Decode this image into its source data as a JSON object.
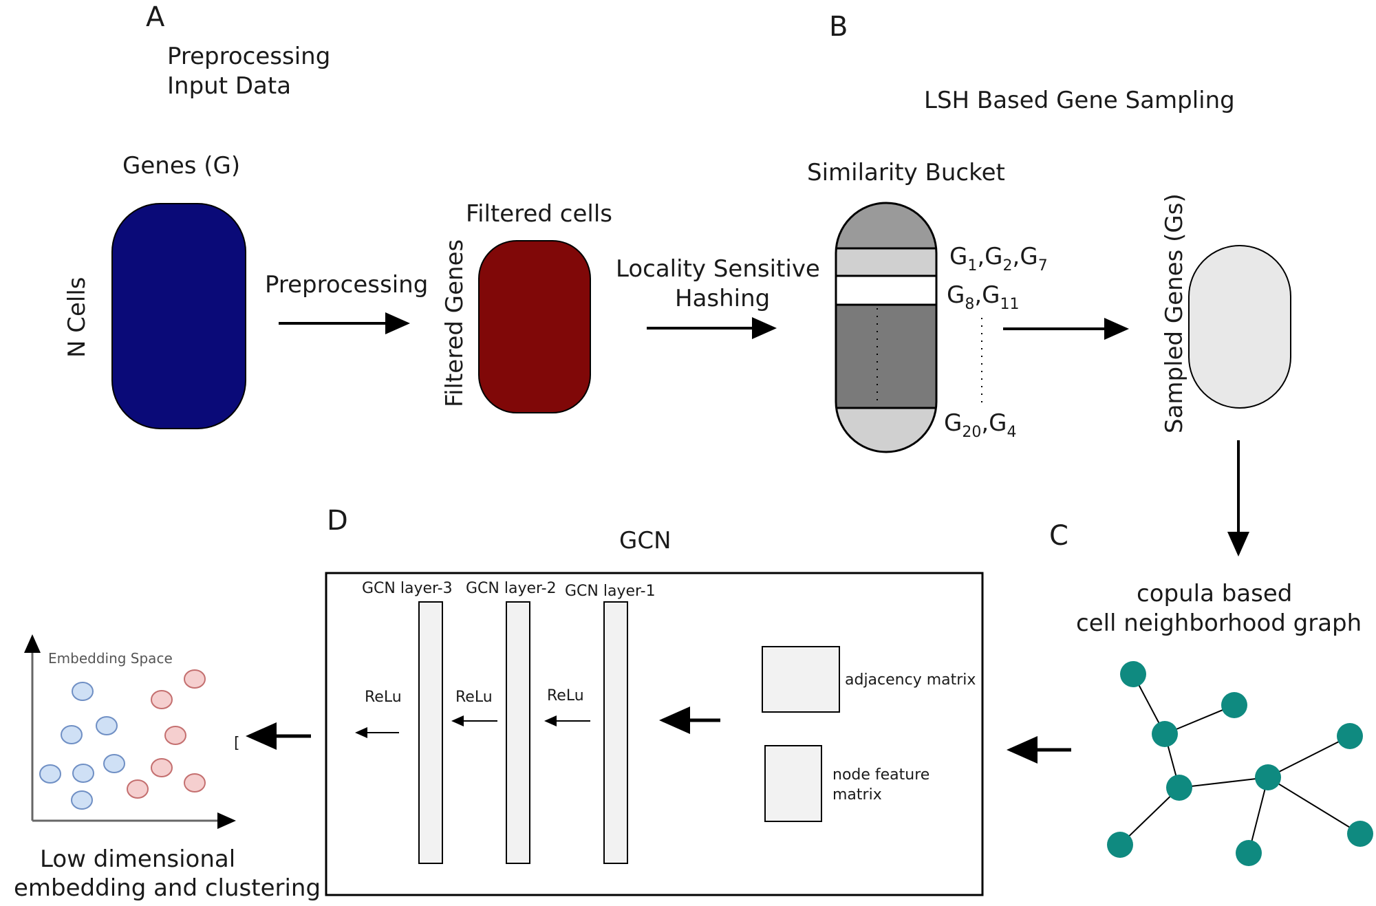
{
  "panels": {
    "a": "A",
    "b": "B",
    "c": "C",
    "d": "D"
  },
  "section_a": {
    "title_line1": "Preprocessing",
    "title_line2": "Input Data",
    "genes_label": "Genes (G)",
    "cells_label": "N Cells",
    "arrow_label": "Preprocessing",
    "filtered_cells_label": "Filtered cells",
    "filtered_genes_label": "Filtered Genes",
    "matrix_color": "#0a0a78",
    "filtered_color": "#800808"
  },
  "section_b": {
    "title": "LSH Based Gene Sampling",
    "hash_label_line1": "Locality Sensitive",
    "hash_label_line2": "Hashing",
    "bucket_label": "Similarity Bucket",
    "bucket1": {
      "g": "G",
      "s1": "1",
      "s2": "2",
      "s3": "7",
      "sep": ","
    },
    "bucket2": {
      "g": "G",
      "s1": "8",
      "s2": "11",
      "sep": ","
    },
    "bucket3": {
      "g": "G",
      "s1": "20",
      "s2": "4",
      "sep": ","
    },
    "sampled_label": "Sampled Genes (Gs)",
    "sampled_color": "#e8e8e8"
  },
  "section_c": {
    "title_line1": "copula based",
    "title_line2": "cell neighborhood graph",
    "node_color": "#0f8a80"
  },
  "section_d": {
    "title": "GCN",
    "layer3": "GCN  layer-3",
    "layer2": "GCN  layer-2",
    "layer1": "GCN  layer-1",
    "relu": "ReLu",
    "adjacency": "adjacency matrix",
    "node_feature_line1": "node feature",
    "node_feature_line2": "matrix",
    "marker": "[",
    "embedding_title": "Embedding Space",
    "output_line1": "Low dimensional",
    "output_line2": "embedding and clustering",
    "cluster_blue": "#cfe0f5",
    "cluster_red": "#f5cfcf"
  }
}
